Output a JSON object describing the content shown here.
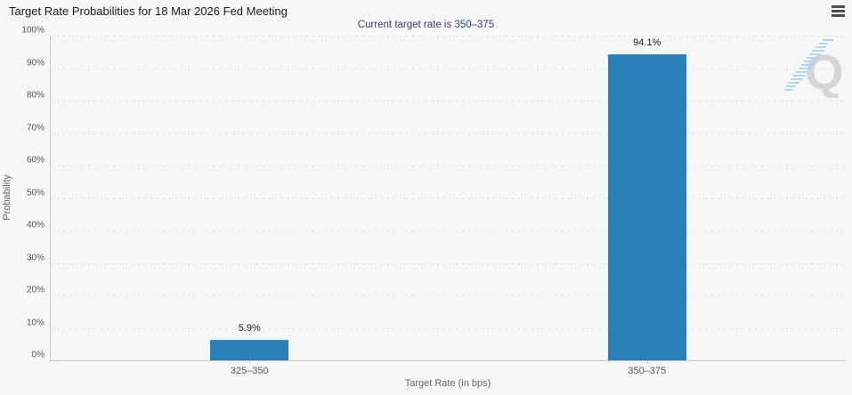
{
  "header": {
    "title": "Target Rate Probabilities for 18 Mar 2026 Fed Meeting",
    "subtitle": "Current target rate is 350–375"
  },
  "menu": {
    "icon": "hamburger-menu-icon"
  },
  "watermark": {
    "letter": "Q",
    "name": "quikstrike-logo",
    "letter_color": "#d2d2d2",
    "hatch_color": "#a9d4ef"
  },
  "chart_data": {
    "type": "bar",
    "title": "Target Rate Probabilities for 18 Mar 2026 Fed Meeting",
    "subtitle": "Current target rate is 350–375",
    "categories": [
      "325–350",
      "350–375"
    ],
    "values": [
      5.9,
      94.1
    ],
    "value_labels": [
      "5.9%",
      "94.1%"
    ],
    "xlabel": "Target Rate (in bps)",
    "ylabel": "Probability",
    "ylim": [
      0,
      100
    ],
    "ytick_values": [
      0,
      10,
      20,
      30,
      40,
      50,
      60,
      70,
      80,
      90,
      100
    ],
    "ytick_labels": [
      "0%",
      "10%",
      "20%",
      "30%",
      "40%",
      "50%",
      "60%",
      "70%",
      "80%",
      "90%",
      "100%"
    ],
    "grid": "horizontal-dotted",
    "legend": "none",
    "bar_color": "#2980b9"
  }
}
